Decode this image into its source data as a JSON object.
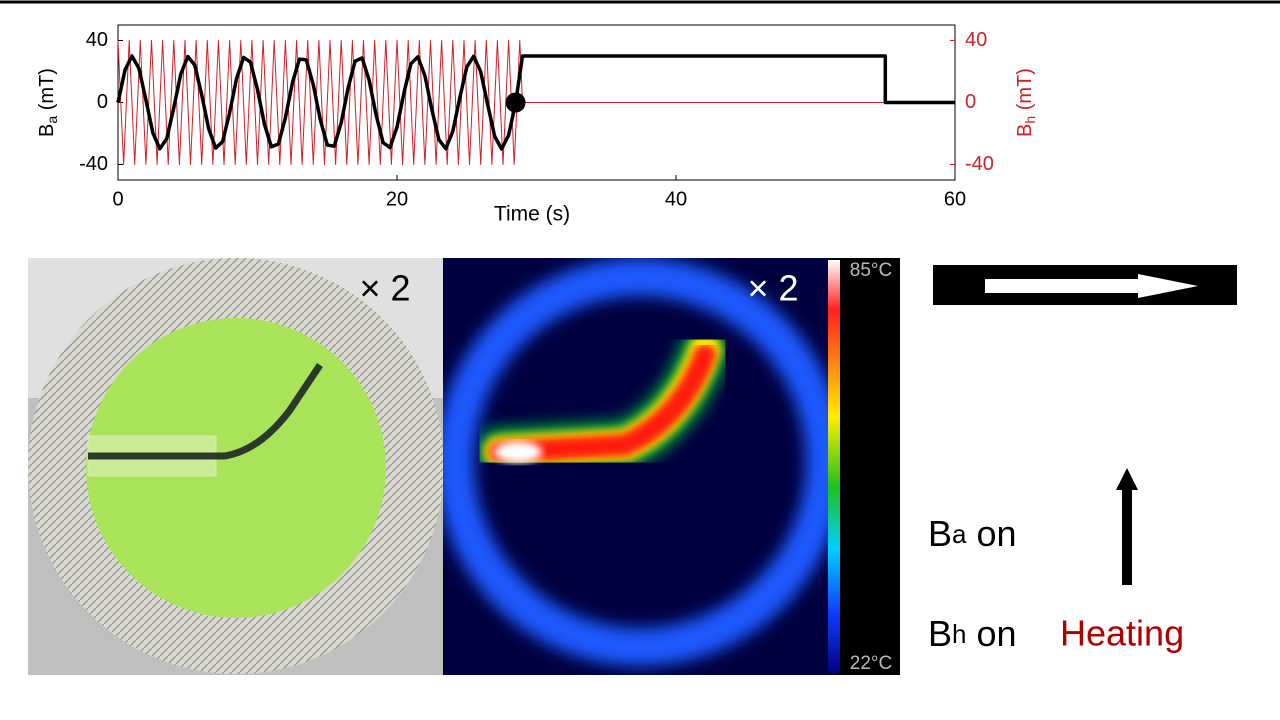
{
  "chart_data": {
    "type": "line",
    "xlabel": "Time (s)",
    "ylabel": [
      "B",
      "a",
      " (mT)"
    ],
    "y2label": [
      "B",
      "h",
      " (mT)"
    ],
    "xlim": [
      0,
      60
    ],
    "xticks": [
      0,
      20,
      40,
      60
    ],
    "ylim": [
      -50,
      50
    ],
    "yticks": [
      -40,
      0,
      40
    ],
    "y2lim": [
      -50,
      50
    ],
    "y2ticks": [
      -40,
      0,
      40
    ],
    "y2color": "#d0202a",
    "grid": false,
    "series": [
      {
        "color": "#d0202a",
        "axis": "y2",
        "x": [
          0,
          0.4,
          0.8,
          1.2,
          1.6,
          2,
          2.4,
          2.8,
          3.2,
          3.6,
          4,
          4.4,
          4.8,
          5.2,
          5.6,
          6,
          6.4,
          6.8,
          7.2,
          7.6,
          8,
          8.4,
          8.8,
          9.2,
          9.6,
          10,
          10.4,
          10.8,
          11.2,
          11.6,
          12,
          12.4,
          12.8,
          13.2,
          13.6,
          14,
          14.4,
          14.8,
          15.2,
          15.6,
          16,
          16.4,
          16.8,
          17.2,
          17.6,
          18,
          18.4,
          18.8,
          19.2,
          19.6,
          20,
          20.4,
          20.8,
          21.2,
          21.6,
          22,
          22.4,
          22.8,
          23.2,
          23.6,
          24,
          24.4,
          24.8,
          25.2,
          25.6,
          26,
          26.4,
          26.8,
          27.2,
          27.6,
          28,
          28.4,
          28.8,
          29,
          60
        ],
        "values": [
          40,
          -40,
          40,
          -40,
          40,
          -40,
          40,
          -40,
          40,
          -40,
          40,
          -40,
          40,
          -40,
          40,
          -40,
          40,
          -40,
          40,
          -40,
          40,
          -40,
          40,
          -40,
          40,
          -40,
          40,
          -40,
          40,
          -40,
          40,
          -40,
          40,
          -40,
          40,
          -40,
          40,
          -40,
          40,
          -40,
          40,
          -40,
          40,
          -40,
          40,
          -40,
          40,
          -40,
          40,
          -40,
          40,
          -40,
          40,
          -40,
          40,
          -40,
          40,
          -40,
          40,
          -40,
          40,
          -40,
          40,
          -40,
          40,
          -40,
          40,
          -40,
          40,
          -40,
          40,
          -40,
          40,
          0,
          0
        ]
      },
      {
        "color": "#000000",
        "axis": "y",
        "x": [
          0,
          0.5,
          1,
          1.5,
          2,
          2.5,
          3,
          3.5,
          4,
          4.5,
          5,
          5.5,
          6,
          6.5,
          7,
          7.5,
          8,
          8.5,
          9,
          9.5,
          10,
          10.5,
          11,
          11.5,
          12,
          12.5,
          13,
          13.5,
          14,
          14.5,
          15,
          15.5,
          16,
          16.5,
          17,
          17.5,
          18,
          18.5,
          19,
          19.5,
          20,
          20.5,
          21,
          21.5,
          22,
          22.5,
          23,
          23.5,
          24,
          24.5,
          25,
          25.5,
          26,
          26.5,
          27,
          27.5,
          28,
          28.5,
          29,
          55,
          55,
          60
        ],
        "values": [
          0,
          20.9,
          30,
          22.1,
          1.7,
          -19.7,
          -29.9,
          -23.2,
          -3.3,
          18.4,
          29.7,
          24.2,
          5,
          -17,
          -29.4,
          -25.2,
          -6.7,
          15.6,
          29.1,
          26,
          8.3,
          -14.2,
          -28.6,
          -26.8,
          -9.9,
          12.7,
          28,
          27.5,
          11.4,
          -11.1,
          -27.4,
          -28.2,
          -13,
          9.6,
          26.7,
          28.7,
          14.5,
          -8,
          -25.9,
          -29.1,
          -15.9,
          6.3,
          25,
          29.5,
          17.3,
          -4.7,
          -24,
          -29.8,
          -18.6,
          3,
          23,
          29.9,
          19.9,
          -1.4,
          -21.9,
          -30,
          -21.1,
          -0.3,
          30,
          30,
          0,
          0
        ]
      }
    ],
    "marker": {
      "x": 28.5,
      "y": 0
    }
  },
  "panels": {
    "photo_scale": "× 2",
    "thermal_scale": "× 2",
    "colorbar_max": "85°C",
    "colorbar_min": "22°C"
  },
  "legend": {
    "line1": [
      "B",
      "a",
      " on"
    ],
    "line2": [
      "B",
      "h",
      " on"
    ],
    "heating": "Heating"
  }
}
